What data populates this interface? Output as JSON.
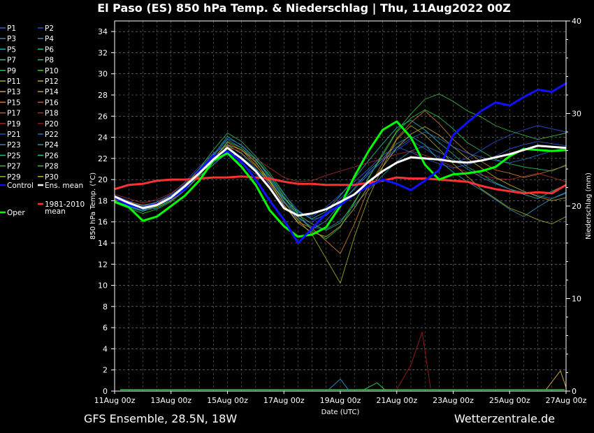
{
  "chart_data": {
    "type": "line",
    "title": "El Paso  (ES)  850 hPa Temp. & Niederschlag | Thu, 11Aug2022 00Z",
    "xlabel": "Date (UTC)",
    "ylabel": "850 hPa Temp. (°C)",
    "y2label": "Niederschlag (mm)",
    "ylim": [
      0,
      35
    ],
    "y2lim": [
      0,
      40
    ],
    "yticks": [
      0,
      2,
      4,
      6,
      8,
      10,
      12,
      14,
      16,
      18,
      20,
      22,
      24,
      26,
      28,
      30,
      32,
      34
    ],
    "y2ticks": [
      0,
      10,
      20,
      30,
      40
    ],
    "xticks": [
      "11Aug 00z",
      "13Aug 00z",
      "15Aug 00z",
      "17Aug 00z",
      "19Aug 00z",
      "21Aug 00z",
      "23Aug 00z",
      "25Aug 00z",
      "27Aug 00z"
    ],
    "x_days": [
      0,
      2,
      4,
      6,
      8,
      10,
      12,
      14,
      16
    ],
    "grid": true,
    "legend_position": "left",
    "legend": [
      {
        "name": "P1",
        "color": "#3a5ad8"
      },
      {
        "name": "P2",
        "color": "#2f4fe0"
      },
      {
        "name": "P3",
        "color": "#3a7ac8"
      },
      {
        "name": "P4",
        "color": "#2a8ad0"
      },
      {
        "name": "P5",
        "color": "#2aa0c0"
      },
      {
        "name": "P6",
        "color": "#2ab8a8"
      },
      {
        "name": "P7",
        "color": "#2ac090"
      },
      {
        "name": "P8",
        "color": "#2ac070"
      },
      {
        "name": "P9",
        "color": "#30c050"
      },
      {
        "name": "P10",
        "color": "#50c030"
      },
      {
        "name": "P11",
        "color": "#a8b020"
      },
      {
        "name": "P12",
        "color": "#c0a830"
      },
      {
        "name": "P13",
        "color": "#d0a030"
      },
      {
        "name": "P14",
        "color": "#d89030"
      },
      {
        "name": "P15",
        "color": "#d07840"
      },
      {
        "name": "P16",
        "color": "#b86040"
      },
      {
        "name": "P17",
        "color": "#c05040"
      },
      {
        "name": "P18",
        "color": "#b03030"
      },
      {
        "name": "P19",
        "color": "#a02828"
      },
      {
        "name": "P20",
        "color": "#901818"
      },
      {
        "name": "P21",
        "color": "#2848c8"
      },
      {
        "name": "P22",
        "color": "#2a70c0"
      },
      {
        "name": "P23",
        "color": "#2a88b8"
      },
      {
        "name": "P24",
        "color": "#2a9aa8"
      },
      {
        "name": "P25",
        "color": "#2ab098"
      },
      {
        "name": "P26",
        "color": "#2ac088"
      },
      {
        "name": "P27",
        "color": "#30b860"
      },
      {
        "name": "P28",
        "color": "#40c040"
      },
      {
        "name": "P29",
        "color": "#80c030"
      },
      {
        "name": "P30",
        "color": "#c0b030"
      },
      {
        "name": "Control",
        "color": "#1010ff"
      },
      {
        "name": "Ens. mean",
        "color": "#ffffff"
      },
      {
        "name": "Oper",
        "color": "#00ff00"
      },
      {
        "name": "1981-2010 mean",
        "color": "#ff3030"
      }
    ],
    "series": [
      {
        "name": "Ens. mean",
        "color": "#ffffff",
        "x": [
          0,
          0.5,
          1,
          1.5,
          2,
          2.5,
          3,
          3.5,
          4,
          4.5,
          5,
          5.5,
          6,
          6.5,
          7,
          7.5,
          8,
          8.5,
          9,
          9.5,
          10,
          10.5,
          11,
          11.5,
          12,
          12.5,
          13,
          13.5,
          14,
          14.5,
          15,
          15.5,
          16
        ],
        "y": [
          18.4,
          17.8,
          17.3,
          17.6,
          18.3,
          19.4,
          20.6,
          21.9,
          23.0,
          22.0,
          20.8,
          19.2,
          17.3,
          16.6,
          16.8,
          17.2,
          17.9,
          18.6,
          19.8,
          20.8,
          21.6,
          22.1,
          22.0,
          21.9,
          21.7,
          21.6,
          21.8,
          22.1,
          22.4,
          22.8,
          23.2,
          23.1,
          23.0
        ]
      },
      {
        "name": "Control",
        "color": "#1010ff",
        "x": [
          0,
          0.5,
          1,
          1.5,
          2,
          2.5,
          3,
          3.5,
          4,
          4.5,
          5,
          5.5,
          6,
          6.5,
          7,
          7.5,
          8,
          8.5,
          9,
          9.5,
          10,
          10.5,
          11,
          11.5,
          12,
          12.5,
          13,
          13.5,
          14,
          14.5,
          15,
          15.5,
          16
        ],
        "y": [
          18.3,
          17.6,
          17.3,
          17.7,
          18.2,
          19.1,
          20.8,
          22.2,
          22.7,
          21.7,
          20.0,
          18.0,
          16.2,
          14.0,
          15.4,
          16.8,
          17.6,
          18.6,
          19.4,
          20.0,
          19.6,
          19.0,
          19.9,
          20.9,
          24.2,
          25.4,
          26.5,
          27.3,
          27.0,
          27.8,
          28.5,
          28.3,
          29.1
        ]
      },
      {
        "name": "Oper",
        "color": "#00ff00",
        "x": [
          0,
          0.5,
          1,
          1.5,
          2,
          2.5,
          3,
          3.5,
          4,
          4.5,
          5,
          5.5,
          6,
          6.5,
          7,
          7.5,
          8,
          8.5,
          9,
          9.5,
          10,
          10.5,
          11,
          11.5,
          12,
          12.5,
          13,
          13.5,
          14,
          14.5,
          15,
          15.5,
          16
        ],
        "y": [
          17.9,
          17.4,
          16.1,
          16.5,
          17.5,
          18.5,
          19.9,
          21.8,
          22.5,
          21.2,
          19.5,
          17.1,
          15.6,
          14.6,
          14.8,
          15.5,
          17.5,
          20.3,
          22.7,
          24.7,
          25.5,
          24.0,
          21.4,
          20.0,
          20.5,
          20.6,
          20.8,
          21.2,
          22.2,
          22.9,
          22.8,
          22.7,
          22.8
        ]
      },
      {
        "name": "1981-2010 mean",
        "color": "#ff3030",
        "x": [
          0,
          0.5,
          1,
          1.5,
          2,
          2.5,
          3,
          3.5,
          4,
          4.5,
          5,
          5.5,
          6,
          6.5,
          7,
          7.5,
          8,
          8.5,
          9,
          9.5,
          10,
          10.5,
          11,
          11.5,
          12,
          12.5,
          13,
          13.5,
          14,
          14.5,
          15,
          15.5,
          16
        ],
        "y": [
          19.1,
          19.5,
          19.6,
          19.9,
          20.0,
          20.0,
          20.1,
          20.2,
          20.2,
          20.3,
          20.2,
          20.1,
          19.8,
          19.6,
          19.6,
          19.5,
          19.5,
          19.5,
          19.7,
          19.9,
          20.2,
          20.1,
          20.1,
          20.0,
          19.9,
          19.8,
          19.4,
          19.1,
          18.9,
          18.7,
          18.8,
          18.7,
          19.5
        ]
      }
    ],
    "ensemble_members": [
      {
        "color": "#3a5ad8",
        "y": [
          18.2,
          17.6,
          17.4,
          17.9,
          18.6,
          19.8,
          21.2,
          22.5,
          23.3,
          22.4,
          21.1,
          19.5,
          17.8,
          16.9,
          16.5,
          17.4,
          18.6,
          19.8,
          21.0,
          22.3,
          23.1,
          22.6,
          22.0,
          21.5,
          21.1,
          21.4,
          21.8,
          22.2,
          22.9,
          23.3,
          23.6,
          23.4,
          23.2
        ]
      },
      {
        "color": "#2f4fe0",
        "y": [
          18.5,
          18.0,
          17.5,
          17.8,
          18.4,
          19.6,
          20.6,
          21.6,
          22.4,
          21.5,
          20.5,
          19.3,
          17.5,
          16.2,
          16.0,
          16.8,
          18.2,
          19.5,
          20.6,
          21.8,
          22.8,
          23.7,
          22.9,
          22.1,
          21.6,
          22.0,
          22.8,
          23.6,
          24.2,
          24.7,
          25.1,
          24.8,
          24.5
        ]
      },
      {
        "color": "#2aa0c0",
        "y": [
          18.0,
          17.5,
          17.1,
          17.3,
          18.0,
          19.2,
          20.9,
          22.3,
          24.1,
          23.2,
          22.0,
          20.1,
          18.3,
          16.5,
          15.3,
          16.1,
          17.7,
          19.2,
          20.8,
          22.0,
          23.4,
          24.1,
          23.3,
          21.8,
          20.7,
          19.8,
          19.0,
          18.1,
          17.2,
          16.5,
          17.4,
          18.2,
          18.8
        ]
      },
      {
        "color": "#2ab8a8",
        "y": [
          17.9,
          17.4,
          17.0,
          17.5,
          18.1,
          19.0,
          20.3,
          21.4,
          22.6,
          22.1,
          21.0,
          19.8,
          18.2,
          17.0,
          16.3,
          17.0,
          18.5,
          20.1,
          21.8,
          23.4,
          24.9,
          25.6,
          24.7,
          23.5,
          22.4,
          21.2,
          20.5,
          19.7,
          19.1,
          18.6,
          18.2,
          18.9,
          19.5
        ]
      },
      {
        "color": "#30c050",
        "y": [
          18.3,
          17.8,
          17.3,
          17.5,
          18.3,
          19.5,
          21.0,
          22.8,
          24.4,
          23.6,
          22.2,
          20.6,
          18.7,
          16.8,
          15.2,
          14.4,
          15.5,
          17.8,
          20.2,
          22.3,
          24.5,
          25.8,
          26.6,
          25.9,
          24.8,
          23.5,
          22.7,
          21.9,
          21.5,
          21.2,
          21.0,
          20.8,
          21.4
        ]
      },
      {
        "color": "#a8b020",
        "y": [
          18.1,
          17.7,
          17.2,
          17.4,
          18.0,
          19.1,
          20.5,
          21.7,
          23.2,
          22.5,
          21.3,
          19.9,
          17.9,
          16.2,
          14.8,
          12.5,
          10.2,
          14.6,
          18.3,
          21.2,
          23.8,
          25.1,
          24.2,
          22.9,
          21.5,
          20.3,
          19.1,
          18.2,
          17.3,
          16.8,
          16.2,
          15.8,
          16.5
        ]
      },
      {
        "color": "#d08030",
        "y": [
          18.4,
          17.9,
          17.6,
          17.8,
          18.5,
          19.4,
          20.7,
          22.0,
          23.5,
          22.8,
          21.4,
          19.6,
          17.6,
          16.0,
          15.4,
          14.2,
          13.0,
          15.8,
          19.2,
          21.6,
          23.9,
          25.4,
          26.5,
          25.3,
          23.8,
          22.6,
          21.7,
          20.9,
          20.6,
          20.2,
          20.5,
          20.9,
          21.3
        ]
      },
      {
        "color": "#b03030",
        "y": [
          18.6,
          18.2,
          17.8,
          18.1,
          18.7,
          19.7,
          20.8,
          21.9,
          23.0,
          22.7,
          22.0,
          21.1,
          20.2,
          19.8,
          19.9,
          20.4,
          20.8,
          21.2,
          21.6,
          22.0,
          22.4,
          22.7,
          22.3,
          21.8,
          21.2,
          20.7,
          20.4,
          20.1,
          20.0,
          20.3,
          20.6,
          20.2,
          19.8
        ]
      },
      {
        "color": "#2a88b8",
        "y": [
          18.0,
          17.4,
          17.1,
          17.6,
          18.2,
          19.3,
          20.7,
          22.2,
          23.8,
          23.0,
          21.6,
          20.0,
          18.0,
          16.4,
          15.5,
          15.3,
          16.1,
          17.6,
          19.0,
          20.4,
          21.7,
          22.7,
          23.2,
          22.6,
          21.9,
          21.0,
          20.2,
          19.6,
          19.1,
          18.8,
          18.5,
          18.2,
          18.7
        ]
      },
      {
        "color": "#40c040",
        "y": [
          17.8,
          17.3,
          16.8,
          17.2,
          17.9,
          19.0,
          20.4,
          21.9,
          23.6,
          23.0,
          21.9,
          20.3,
          18.4,
          16.7,
          15.8,
          15.2,
          15.9,
          17.9,
          20.1,
          22.5,
          24.6,
          26.2,
          27.6,
          28.1,
          27.4,
          26.5,
          25.9,
          25.1,
          24.6,
          24.2,
          23.8,
          24.1,
          24.4
        ]
      },
      {
        "color": "#c0b030",
        "y": [
          18.2,
          17.7,
          17.4,
          17.7,
          18.3,
          19.5,
          20.8,
          22.1,
          23.3,
          22.8,
          21.7,
          19.8,
          17.6,
          15.9,
          15.0,
          14.6,
          15.6,
          17.3,
          19.4,
          21.2,
          23.0,
          24.3,
          25.0,
          24.2,
          23.1,
          22.0,
          21.1,
          20.2,
          19.5,
          18.9,
          18.4,
          18.0,
          18.3
        ]
      },
      {
        "color": "#2a70c0",
        "y": [
          18.4,
          17.8,
          17.5,
          17.9,
          18.5,
          19.6,
          21.0,
          22.4,
          23.9,
          23.3,
          22.0,
          20.4,
          18.6,
          17.1,
          16.2,
          16.6,
          17.8,
          19.1,
          20.5,
          21.8,
          23.0,
          23.9,
          24.5,
          23.9,
          23.1,
          22.5,
          22.1,
          21.8,
          21.6,
          21.9,
          22.3,
          22.7,
          23.0
        ]
      }
    ],
    "precipitation_mm": [
      {
        "color": "#901818",
        "x": [
          10.0,
          10.5,
          10.9,
          11.2
        ],
        "y": [
          0.2,
          2.8,
          6.4,
          0.3
        ]
      },
      {
        "color": "#2a88b8",
        "x": [
          7.6,
          8.0,
          8.3
        ],
        "y": [
          0.2,
          1.3,
          0.1
        ]
      },
      {
        "color": "#c0a830",
        "x": [
          15.3,
          15.8,
          16.0
        ],
        "y": [
          0.2,
          2.2,
          0.4
        ]
      },
      {
        "color": "#30c050",
        "x": [
          8.8,
          9.3,
          9.6
        ],
        "y": [
          0.1,
          0.9,
          0.1
        ]
      }
    ]
  },
  "footer": {
    "left": "GFS Ensemble, 28.5N, 18W",
    "right": "Wetterzentrale.de"
  }
}
